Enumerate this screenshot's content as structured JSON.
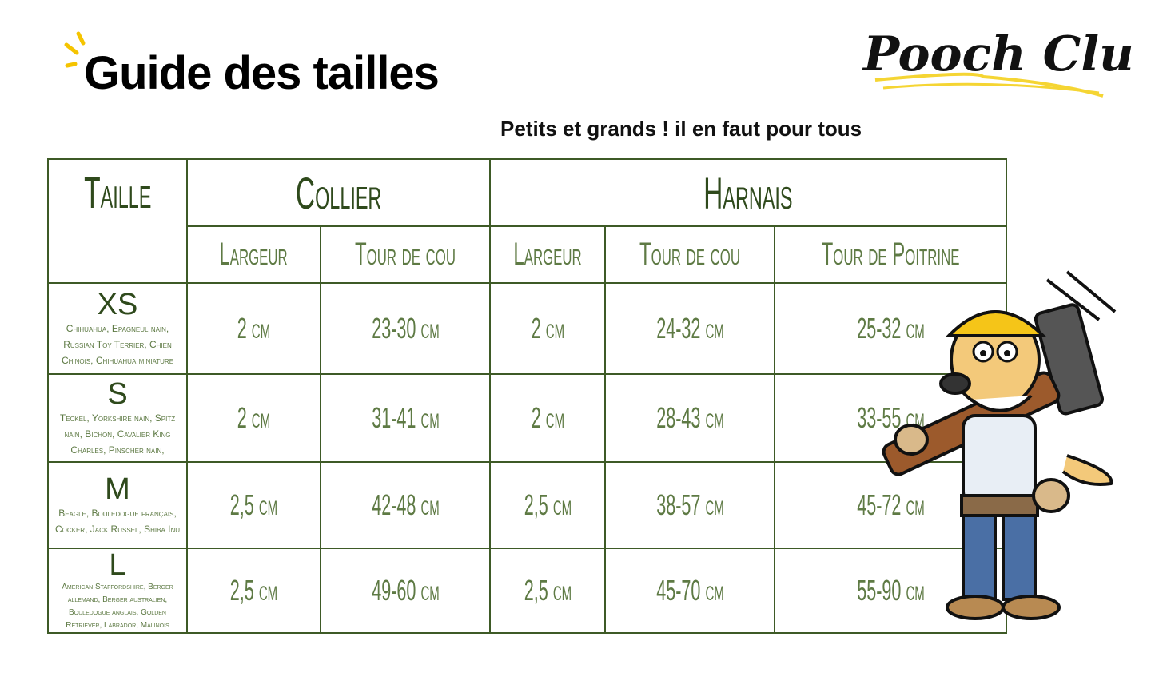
{
  "header": {
    "title": "Guide des tailles",
    "brand": "Pooch Club.",
    "subtitle": "Petits et grands ! il en faut pour tous"
  },
  "table": {
    "size_header": "Taille",
    "collier": "Collier",
    "harnais": "Harnais",
    "columns": [
      "Largeur",
      "Tour de cou",
      "Largeur",
      "Tour de cou",
      "Tour de Poitrine"
    ],
    "rows": [
      {
        "size": "XS",
        "breeds": "Chihuahua, Epagneul nain, Russian Toy Terrier, Chien Chinois, Chihuahua miniature",
        "values": [
          "2 cm",
          "23-30 cm",
          "2 cm",
          "24-32 cm",
          "25-32 cm"
        ]
      },
      {
        "size": "S",
        "breeds": "Teckel, Yorkshire nain, Spitz nain, Bichon, Cavalier King Charles, Pinscher nain,",
        "values": [
          "2 cm",
          "31-41 cm",
          "2 cm",
          "28-43 cm",
          "33-55 cm"
        ]
      },
      {
        "size": "M",
        "breeds": "Beagle, Bouledogue français, Cocker, Jack Russel, Shiba Inu",
        "values": [
          "2,5 cm",
          "42-48 cm",
          "2,5 cm",
          "38-57 cm",
          "45-72 cm"
        ]
      },
      {
        "size": "L",
        "breeds": "American Staffordshire, Berger allemand, Berger australien, Bouledogue anglais, Golden Retriever, Labrador, Malinois",
        "values": [
          "2,5 cm",
          "49-60 cm",
          "2,5 cm",
          "45-70 cm",
          "55-90 cm"
        ]
      }
    ]
  },
  "colors": {
    "table_border": "#3e5a26",
    "text_green": "#4d6a32",
    "accent_yellow": "#f5d533"
  }
}
